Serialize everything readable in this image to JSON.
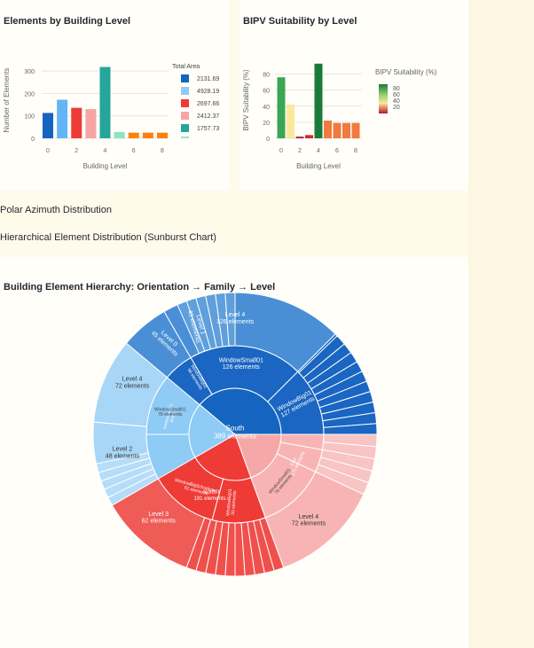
{
  "chart_data": [
    {
      "type": "bar",
      "title": "Elements by Building Level",
      "xlabel": "Building Level",
      "ylabel": "Number of Elements",
      "x": [
        0,
        1,
        2,
        3,
        4,
        5,
        6,
        7,
        8
      ],
      "values": [
        113,
        172,
        136,
        130,
        318,
        28,
        25,
        25,
        25
      ],
      "xticks": [
        "0",
        "2",
        "4",
        "6",
        "8"
      ],
      "yticks": [
        "0",
        "100",
        "200",
        "300"
      ],
      "ylim": [
        0,
        340
      ],
      "colors": [
        "#1565c0",
        "#64b5f6",
        "#ef3b36",
        "#f6a4a4",
        "#26a69a",
        "#8fe3b8",
        "#ff7f0e",
        "#ff7f0e",
        "#ff7f0e"
      ],
      "legend": {
        "title": "Total Area",
        "entries": [
          {
            "label": "2131.69",
            "color": "#1565c0"
          },
          {
            "label": "4928.19",
            "color": "#8ecbf5"
          },
          {
            "label": "2697.66",
            "color": "#ef3b36"
          },
          {
            "label": "2412.37",
            "color": "#f6a4a4"
          },
          {
            "label": "1757.73",
            "color": "#26a69a"
          }
        ]
      }
    },
    {
      "type": "bar",
      "title": "BIPV Suitability by Level",
      "xlabel": "Building Level",
      "ylabel": "BIPV Suitability (%)",
      "x": [
        0,
        1,
        2,
        3,
        4,
        5,
        6,
        7,
        8
      ],
      "values": [
        76,
        42,
        2,
        4,
        93,
        22,
        19,
        19,
        19
      ],
      "colors": [
        "#3aa655",
        "#fbe89b",
        "#b2182b",
        "#cf2a2a",
        "#1a7a3a",
        "#f07a40",
        "#f07a40",
        "#f07a40",
        "#f07a40"
      ],
      "xticks": [
        "0",
        "2",
        "4",
        "6",
        "8"
      ],
      "yticks": [
        "0",
        "20",
        "40",
        "60",
        "80"
      ],
      "ylim": [
        0,
        95
      ],
      "colorbar": {
        "title": "BIPV Suitability (%)",
        "ticks": [
          "80",
          "60",
          "40",
          "20"
        ]
      }
    },
    {
      "type": "sunburst",
      "title": "Building Element Hierarchy: Orientation → Family → Level",
      "total_label": "South",
      "total_value": "389 elements",
      "rings": {
        "orientation": [
          {
            "label": "South",
            "value": "389 elements",
            "count": 389,
            "color": "#1565c0"
          },
          {
            "label": "East",
            "value": "175 elements",
            "count": 175,
            "color": "#f6a8a8"
          },
          {
            "label": "North",
            "value": "191 elements",
            "count": 191,
            "color": "#ef3b36"
          },
          {
            "label": "West",
            "value": "199 elements",
            "count": 199,
            "color": "#8ecbf5"
          }
        ],
        "family": [
          {
            "label": "WindowSmall01",
            "value": "126 elements",
            "count": 126,
            "color": "#1a66c2"
          },
          {
            "label": "WindowBig01",
            "value": "127 elements",
            "count": 127,
            "color": "#1a66c2"
          },
          {
            "label": "WindowBigSchodiste01",
            "value": "",
            "count": 21,
            "color": "#1a66c2"
          },
          {
            "label": "WindowBig03",
            "value": "",
            "count": 22,
            "color": "#f8b4b4"
          },
          {
            "label": "WindowBigSchodiste01",
            "value": "16 elements",
            "count": 16,
            "color": "#f8b4b4"
          },
          {
            "label": "WindowSmall01",
            "value": "76 elements",
            "count": 76,
            "color": "#f8b4b4"
          },
          {
            "label": "WindowBig01",
            "value": "50 elements",
            "count": 50,
            "color": "#ef3b36"
          },
          {
            "label": "WindowBigSchodiste01",
            "value": "61 elements",
            "count": 61,
            "color": "#ef3b36"
          },
          {
            "label": "WindowSmall01",
            "value": "78 elements",
            "count": 78,
            "color": "#8ecbf5"
          },
          {
            "label": "WindowBigSchodiste01",
            "value": "16 elements",
            "count": 16,
            "color": "#8ecbf5"
          },
          {
            "label": "WindowBig01",
            "value": "99 elements",
            "count": 99,
            "color": "#1a66c2"
          }
        ],
        "level": [
          {
            "label": "Level 4",
            "value": "126 elements",
            "count": 126,
            "color": "#4a8fd6"
          },
          {
            "label": "Level 4",
            "value": "72 elements",
            "count": 72,
            "color": "#f8b4b4"
          },
          {
            "label": "Level 3",
            "value": "62 elements",
            "count": 62,
            "color": "#ef5b57"
          },
          {
            "label": "Level 2",
            "value": "48 elements",
            "count": 48,
            "color": "#a7d6f7"
          },
          {
            "label": "Level 4",
            "value": "72 elements",
            "count": 72,
            "color": "#a7d6f7"
          },
          {
            "label": "Level 0",
            "value": "45 elements",
            "count": 45,
            "color": "#4a8fd6"
          },
          {
            "label": "Level 1",
            "value": "45 elements",
            "count": 45,
            "color": "#4a8fd6"
          }
        ]
      }
    }
  ],
  "sections": {
    "polar": "Polar Azimuth Distribution",
    "sunburst_heading": "Hierarchical Element Distribution (Sunburst Chart)"
  }
}
